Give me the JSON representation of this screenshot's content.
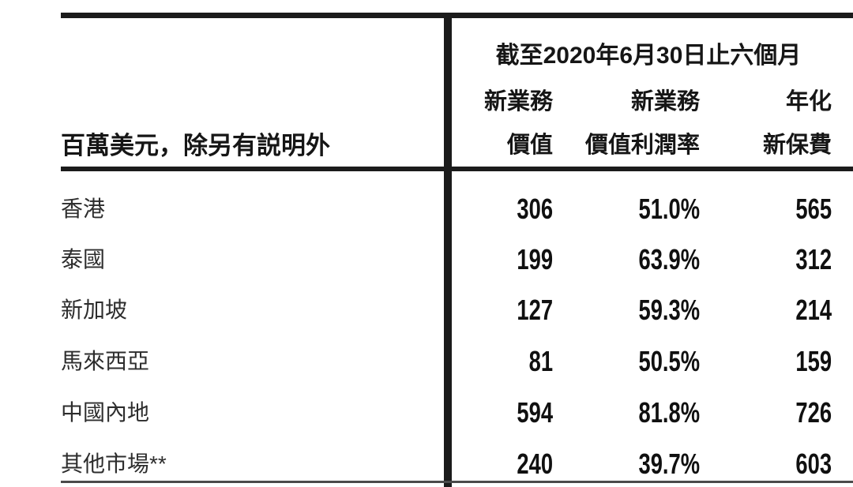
{
  "table": {
    "unit_note": "百萬美元，除另有説明外",
    "period_heading": "截至2020年6月30日止六個月",
    "columns": [
      {
        "line1": "新業務",
        "line2": "價值"
      },
      {
        "line1": "新業務",
        "line2": "價值利潤率"
      },
      {
        "line1": "年化",
        "line2": "新保費"
      }
    ],
    "rows": [
      {
        "market": "香港",
        "nbv": "306",
        "margin": "51.0%",
        "anp": "565"
      },
      {
        "market": "泰國",
        "nbv": "199",
        "margin": "63.9%",
        "anp": "312"
      },
      {
        "market": "新加坡",
        "nbv": "127",
        "margin": "59.3%",
        "anp": "214"
      },
      {
        "market": "馬來西亞",
        "nbv": "81",
        "margin": "50.5%",
        "anp": "159"
      },
      {
        "market": "中國內地",
        "nbv": "594",
        "margin": "81.8%",
        "anp": "726"
      },
      {
        "market": "其他市場**",
        "nbv": "240",
        "margin": "39.7%",
        "anp": "603"
      }
    ],
    "colors": {
      "background": "#ffffff",
      "text": "#161616",
      "rule": "#1b1b1b",
      "bottom_rule": "#4a4a4a"
    }
  }
}
